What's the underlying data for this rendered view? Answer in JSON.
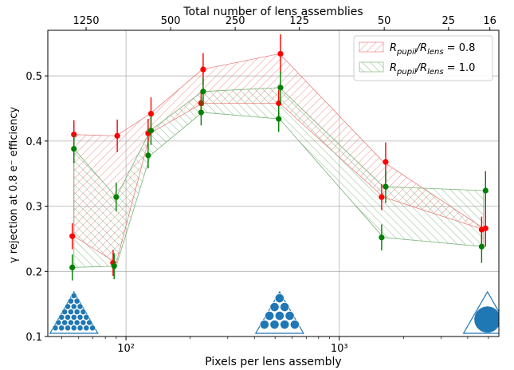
{
  "chart_data": {
    "type": "scatter",
    "x_scale": "log",
    "xlabel": "Pixels per lens assembly",
    "top_xlabel": "Total number of lens assemblies",
    "ylabel": "γ rejection at 0.8 e⁻ efficiency",
    "xlim": [
      43,
      5600
    ],
    "ylim": [
      0.1,
      0.57
    ],
    "y_ticks": [
      0.1,
      0.2,
      0.3,
      0.4,
      0.5
    ],
    "x_ticks_major": [
      100,
      1000
    ],
    "x_tick_labels": [
      "10²",
      "10³"
    ],
    "top_ticks": [
      {
        "label": "1250",
        "pixels": 65
      },
      {
        "label": "500",
        "pixels": 162
      },
      {
        "label": "250",
        "pixels": 325
      },
      {
        "label": "125",
        "pixels": 650
      },
      {
        "label": "50",
        "pixels": 1625
      },
      {
        "label": "25",
        "pixels": 3250
      },
      {
        "label": "16",
        "pixels": 5080
      }
    ],
    "grid": true,
    "legend_position": "top-right",
    "series": [
      {
        "name": "R_pupil/R_lens = 0.8",
        "legend_label": "R_pupil/R_lens = 0.8",
        "color": "#ff0000",
        "band_color": "#e8736f",
        "x": [
          57,
          90,
          130,
          228,
          525,
          1610,
          4750
        ],
        "points": [
          [
            [
              56,
              0.254,
              0.02
            ],
            [
              57,
              0.41,
              0.022
            ]
          ],
          [
            [
              87,
              0.213,
              0.02
            ],
            [
              91,
              0.408,
              0.025
            ]
          ],
          [
            [
              127,
              0.412,
              0.022
            ],
            [
              131,
              0.442,
              0.025
            ]
          ],
          [
            [
              225,
              0.458,
              0.02
            ],
            [
              230,
              0.51,
              0.025
            ]
          ],
          [
            [
              520,
              0.458,
              0.02
            ],
            [
              530,
              0.534,
              0.03
            ]
          ],
          [
            [
              1580,
              0.314,
              0.02
            ],
            [
              1650,
              0.368,
              0.03
            ]
          ],
          [
            [
              4650,
              0.264,
              0.02
            ],
            [
              4850,
              0.266,
              0.028
            ]
          ]
        ],
        "band_lower": [
          0.254,
          0.213,
          0.412,
          0.458,
          0.458,
          0.314,
          0.264
        ],
        "band_upper": [
          0.41,
          0.408,
          0.442,
          0.51,
          0.534,
          0.368,
          0.266
        ]
      },
      {
        "name": "R_pupil/R_lens = 1.0",
        "legend_label": "R_pupil/R_lens = 1.0",
        "color": "#008000",
        "band_color": "#6aaa6a",
        "x": [
          57,
          90,
          130,
          228,
          525,
          1610,
          4750
        ],
        "points": [
          [
            [
              56,
              0.206,
              0.02
            ],
            [
              57,
              0.388,
              0.022
            ]
          ],
          [
            [
              88,
              0.208,
              0.02
            ],
            [
              90,
              0.314,
              0.022
            ]
          ],
          [
            [
              127,
              0.378,
              0.02
            ],
            [
              131,
              0.416,
              0.022
            ]
          ],
          [
            [
              225,
              0.444,
              0.02
            ],
            [
              230,
              0.476,
              0.022
            ]
          ],
          [
            [
              520,
              0.434,
              0.02
            ],
            [
              530,
              0.482,
              0.025
            ]
          ],
          [
            [
              1580,
              0.252,
              0.02
            ],
            [
              1650,
              0.33,
              0.025
            ]
          ],
          [
            [
              4650,
              0.238,
              0.025
            ],
            [
              4850,
              0.324,
              0.03
            ]
          ]
        ],
        "band_lower": [
          0.206,
          0.208,
          0.378,
          0.444,
          0.434,
          0.252,
          0.238
        ],
        "band_upper": [
          0.388,
          0.314,
          0.416,
          0.476,
          0.482,
          0.33,
          0.324
        ]
      }
    ],
    "insets": [
      {
        "name": "dense-hex-triangle-icon",
        "pixels": 57,
        "circles_per_side": 7
      },
      {
        "name": "ten-circle-triangle-icon",
        "pixels": 525,
        "circles_per_side": 4
      },
      {
        "name": "single-circle-triangle-icon",
        "pixels": 4950,
        "circles_per_side": 1
      }
    ],
    "inset_color": "#1f77b4"
  }
}
